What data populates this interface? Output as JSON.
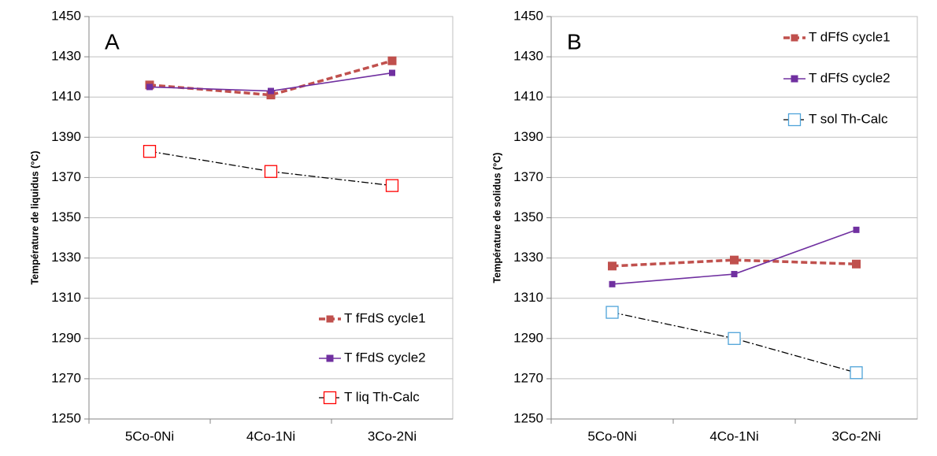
{
  "chart_data": [
    {
      "type": "line",
      "annotation": "A",
      "ylabel": "Température de liquidus (°C)",
      "categories": [
        "5Co-0Ni",
        "4Co-1Ni",
        "3Co-2Ni"
      ],
      "ylim": [
        1250,
        1450
      ],
      "yticks": [
        1250,
        1270,
        1290,
        1310,
        1330,
        1350,
        1370,
        1390,
        1410,
        1430,
        1450
      ],
      "legend": "lower right",
      "series": [
        {
          "name": "T fFdS cycle1",
          "color": "#c0504d",
          "marker_color": "#c0504d",
          "linestyle": "dashed",
          "marker": "filled-square",
          "values": [
            1416,
            1411,
            1428
          ]
        },
        {
          "name": "T fFdS cycle2",
          "color": "#7030a0",
          "marker_color": "#7030a0",
          "linestyle": "solid",
          "marker": "filled-square",
          "values": [
            1415,
            1413,
            1422
          ]
        },
        {
          "name": "T liq Th-Calc",
          "color": "#000000",
          "marker_color": "#ff0000",
          "linestyle": "dashdot",
          "marker": "hollow-square",
          "values": [
            1383,
            1373,
            1366
          ]
        }
      ]
    },
    {
      "type": "line",
      "annotation": "B",
      "ylabel": "Température de solidus (°C)",
      "categories": [
        "5Co-0Ni",
        "4Co-1Ni",
        "3Co-2Ni"
      ],
      "ylim": [
        1250,
        1450
      ],
      "yticks": [
        1250,
        1270,
        1290,
        1310,
        1330,
        1350,
        1370,
        1390,
        1410,
        1430,
        1450
      ],
      "legend": "upper right",
      "series": [
        {
          "name": "T dFfS cycle1",
          "color": "#c0504d",
          "marker_color": "#c0504d",
          "linestyle": "dashed",
          "marker": "filled-square",
          "values": [
            1326,
            1329,
            1327
          ]
        },
        {
          "name": "T dFfS cycle2",
          "color": "#7030a0",
          "marker_color": "#7030a0",
          "linestyle": "solid",
          "marker": "filled-square",
          "values": [
            1317,
            1322,
            1344
          ]
        },
        {
          "name": "T sol Th-Calc",
          "color": "#000000",
          "marker_color": "#4fa3d9",
          "linestyle": "dashdot",
          "marker": "hollow-square",
          "values": [
            1303,
            1290,
            1273
          ]
        }
      ]
    }
  ]
}
